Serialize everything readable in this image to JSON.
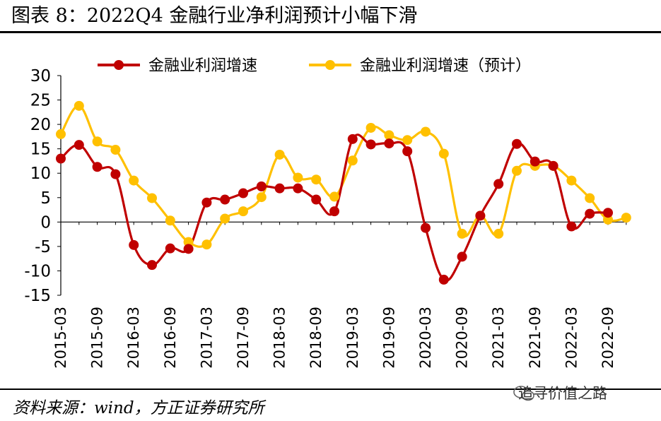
{
  "title": "图表 8：2022Q4 金融行业净利润预计小幅下滑",
  "source": "资料来源：wind，方正证券研究所",
  "watermark": "追寻价值之路",
  "colors": {
    "actual": "#C00000",
    "forecast": "#FFC000"
  },
  "chart_data": {
    "type": "line",
    "title": "",
    "xlabel": "",
    "ylabel": "",
    "ylim": [
      -15,
      30
    ],
    "yticks": [
      -15,
      -10,
      -5,
      0,
      5,
      10,
      15,
      20,
      25,
      30
    ],
    "legend_position": "top",
    "x": [
      "2015-03",
      "2015-06",
      "2015-09",
      "2015-12",
      "2016-03",
      "2016-06",
      "2016-09",
      "2016-12",
      "2017-03",
      "2017-06",
      "2017-09",
      "2017-12",
      "2018-03",
      "2018-06",
      "2018-09",
      "2018-12",
      "2019-03",
      "2019-06",
      "2019-09",
      "2019-12",
      "2020-03",
      "2020-06",
      "2020-09",
      "2020-12",
      "2021-03",
      "2021-06",
      "2021-09",
      "2021-12",
      "2022-03",
      "2022-06",
      "2022-09",
      "2022-12"
    ],
    "xtick_labels": [
      "2015-03",
      "2015-09",
      "2016-03",
      "2016-09",
      "2017-03",
      "2017-09",
      "2018-03",
      "2018-09",
      "2019-03",
      "2019-09",
      "2020-03",
      "2020-09",
      "2021-03",
      "2021-09",
      "2022-03",
      "2022-09"
    ],
    "series": [
      {
        "name": "金融业利润增速",
        "values": [
          13,
          15.8,
          11.3,
          9.8,
          -4.7,
          -8.8,
          -5.4,
          -5.5,
          4,
          4.6,
          5.9,
          7.3,
          6.9,
          6.9,
          4.6,
          2.2,
          17,
          15.9,
          16.1,
          14.5,
          -1.2,
          -11.8,
          -7.1,
          1.3,
          7.8,
          16,
          12.4,
          11.5,
          -0.9,
          1.7,
          1.9,
          null
        ]
      },
      {
        "name": "金融业利润增速（预计）",
        "values": [
          18,
          23.8,
          16.5,
          14.8,
          8.5,
          4.9,
          0.3,
          -4.1,
          -4.6,
          0.7,
          2.2,
          5.1,
          13.8,
          9.1,
          8.7,
          5.2,
          12.6,
          19.3,
          17.8,
          16.8,
          18.5,
          14,
          -2.4,
          1.3,
          -2.4,
          10.5,
          11.5,
          11.5,
          8.5,
          4.9,
          0.5,
          0.9
        ]
      }
    ]
  }
}
